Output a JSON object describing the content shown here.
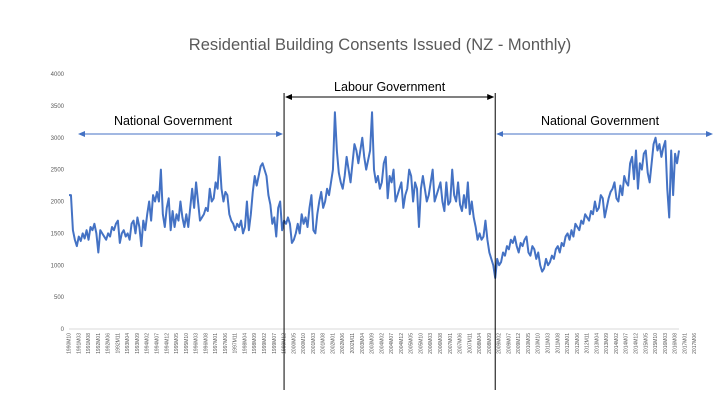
{
  "chart_data": {
    "type": "line",
    "title": "Residential Building Consents Issued (NZ - Monthly)",
    "xlabel": "",
    "ylabel": "",
    "ylim": [
      0,
      4000
    ],
    "yticks": [
      0,
      500,
      1000,
      1500,
      2000,
      2500,
      3000,
      3500,
      4000
    ],
    "grid": false,
    "legend": "none",
    "line_color": "#4472C4",
    "x_tick_labels": [
      "1990M10",
      "1991M03",
      "1991M08",
      "1992M01",
      "1992M06",
      "1992M11",
      "1993M04",
      "1993M09",
      "1994M02",
      "1994M07",
      "1994M12",
      "1995M05",
      "1995M10",
      "1996M03",
      "1996M08",
      "1997M01",
      "1997M06",
      "1997M11",
      "1998M04",
      "1998M09",
      "1999M02",
      "1999M07",
      "1999M12",
      "2000M05",
      "2000M10",
      "2001M03",
      "2001M08",
      "2002M01",
      "2002M06",
      "2002M11",
      "2003M04",
      "2003M09",
      "2004M02",
      "2004M07",
      "2004M12",
      "2005M05",
      "2005M10",
      "2006M03",
      "2006M08",
      "2007M01",
      "2007M06",
      "2007M11",
      "2008M04",
      "2008M09",
      "2009M02",
      "2009M07",
      "2009M12",
      "2010M05",
      "2010M10",
      "2011M03",
      "2011M08",
      "2012M01",
      "2012M06",
      "2012M11",
      "2013M04",
      "2013M09",
      "2014M02",
      "2014M07",
      "2014M12",
      "2015M05",
      "2015M10",
      "2016M03",
      "2016M08",
      "2017M01",
      "2017M06"
    ],
    "series": [
      {
        "values": [
          2100,
          2100,
          1550,
          1400,
          1300,
          1450,
          1380,
          1500,
          1420,
          1550,
          1400,
          1600,
          1550,
          1650,
          1500,
          1200,
          1550,
          1500,
          1450,
          1400,
          1500,
          1450,
          1600,
          1550,
          1650,
          1700,
          1350,
          1500,
          1550,
          1450,
          1500,
          1400,
          1650,
          1700,
          1500,
          1750,
          1600,
          1300,
          1700,
          1550,
          1800,
          2000,
          1700,
          2100,
          2000,
          2150,
          2000,
          2500,
          1800,
          1600,
          1900,
          2050,
          1550,
          1850,
          1600,
          1800,
          1700,
          2000,
          1750,
          1600,
          1800,
          1600,
          1900,
          2200,
          1900,
          2300,
          2000,
          1700,
          1750,
          1800,
          1900,
          1850,
          2200,
          2000,
          2050,
          2300,
          2200,
          2700,
          2200,
          2000,
          2150,
          2100,
          1800,
          1700,
          1650,
          1550,
          1650,
          1600,
          1700,
          1500,
          1600,
          2000,
          1550,
          1800,
          2150,
          2400,
          2250,
          2400,
          2550,
          2600,
          2500,
          2400,
          2100,
          1950,
          1650,
          1750,
          1450,
          1900,
          2000,
          1550,
          1700,
          1650,
          1750,
          1650,
          1350,
          1400,
          1500,
          1650,
          1500,
          1800,
          1650,
          1750,
          1600,
          1900,
          2100,
          1550,
          1500,
          1800,
          2000,
          2150,
          1900,
          2000,
          2200,
          2100,
          2300,
          2500,
          3400,
          2800,
          2450,
          2300,
          2200,
          2400,
          2700,
          2500,
          2300,
          2600,
          2900,
          2800,
          2600,
          2800,
          3000,
          2700,
          2500,
          2650,
          2800,
          3400,
          2500,
          2300,
          2400,
          2200,
          2300,
          2600,
          2700,
          2050,
          2400,
          2300,
          2500,
          2000,
          2100,
          2200,
          2300,
          1900,
          2100,
          2200,
          2500,
          2400,
          2000,
          2300,
          2200,
          1600,
          2200,
          2400,
          2200,
          2000,
          2100,
          2300,
          2500,
          2000,
          2100,
          2200,
          2300,
          2000,
          1850,
          2300,
          1950,
          2000,
          2500,
          2100,
          2000,
          2300,
          1950,
          1850,
          2100,
          1900,
          2300,
          1800,
          2000,
          1750,
          1600,
          1400,
          1500,
          1400,
          1450,
          1700,
          1400,
          1200,
          1100,
          1000,
          800,
          1100,
          1000,
          1050,
          1200,
          1150,
          1300,
          1250,
          1400,
          1350,
          1450,
          1300,
          1200,
          1350,
          1300,
          1400,
          1450,
          1200,
          1150,
          1300,
          1250,
          1100,
          1200,
          1000,
          900,
          950,
          1100,
          1000,
          1050,
          1150,
          1100,
          1250,
          1300,
          1200,
          1350,
          1300,
          1450,
          1500,
          1400,
          1550,
          1450,
          1650,
          1600,
          1550,
          1700,
          1650,
          1800,
          1750,
          1700,
          1850,
          1800,
          2000,
          1850,
          1900,
          2100,
          2050,
          1750,
          1900,
          2050,
          2150,
          2200,
          2300,
          2050,
          2000,
          2250,
          2100,
          2400,
          2300,
          2250,
          2600,
          2700,
          2350,
          2800,
          2200,
          2600,
          2500,
          2750,
          2800,
          2450,
          2300,
          2600,
          2900,
          3000,
          2800,
          2900,
          2700,
          2850,
          2950,
          2200,
          1750,
          2800,
          2100,
          2750,
          2600,
          2800
        ]
      }
    ],
    "annotations": [
      {
        "text": "National Government",
        "span": [
          "1990M10",
          "1999M12"
        ]
      },
      {
        "text": "Labour Government",
        "span": [
          "1999M12",
          "2008M12"
        ]
      },
      {
        "text": "National Government",
        "span": [
          "2008M12",
          "2017M06"
        ]
      }
    ]
  }
}
